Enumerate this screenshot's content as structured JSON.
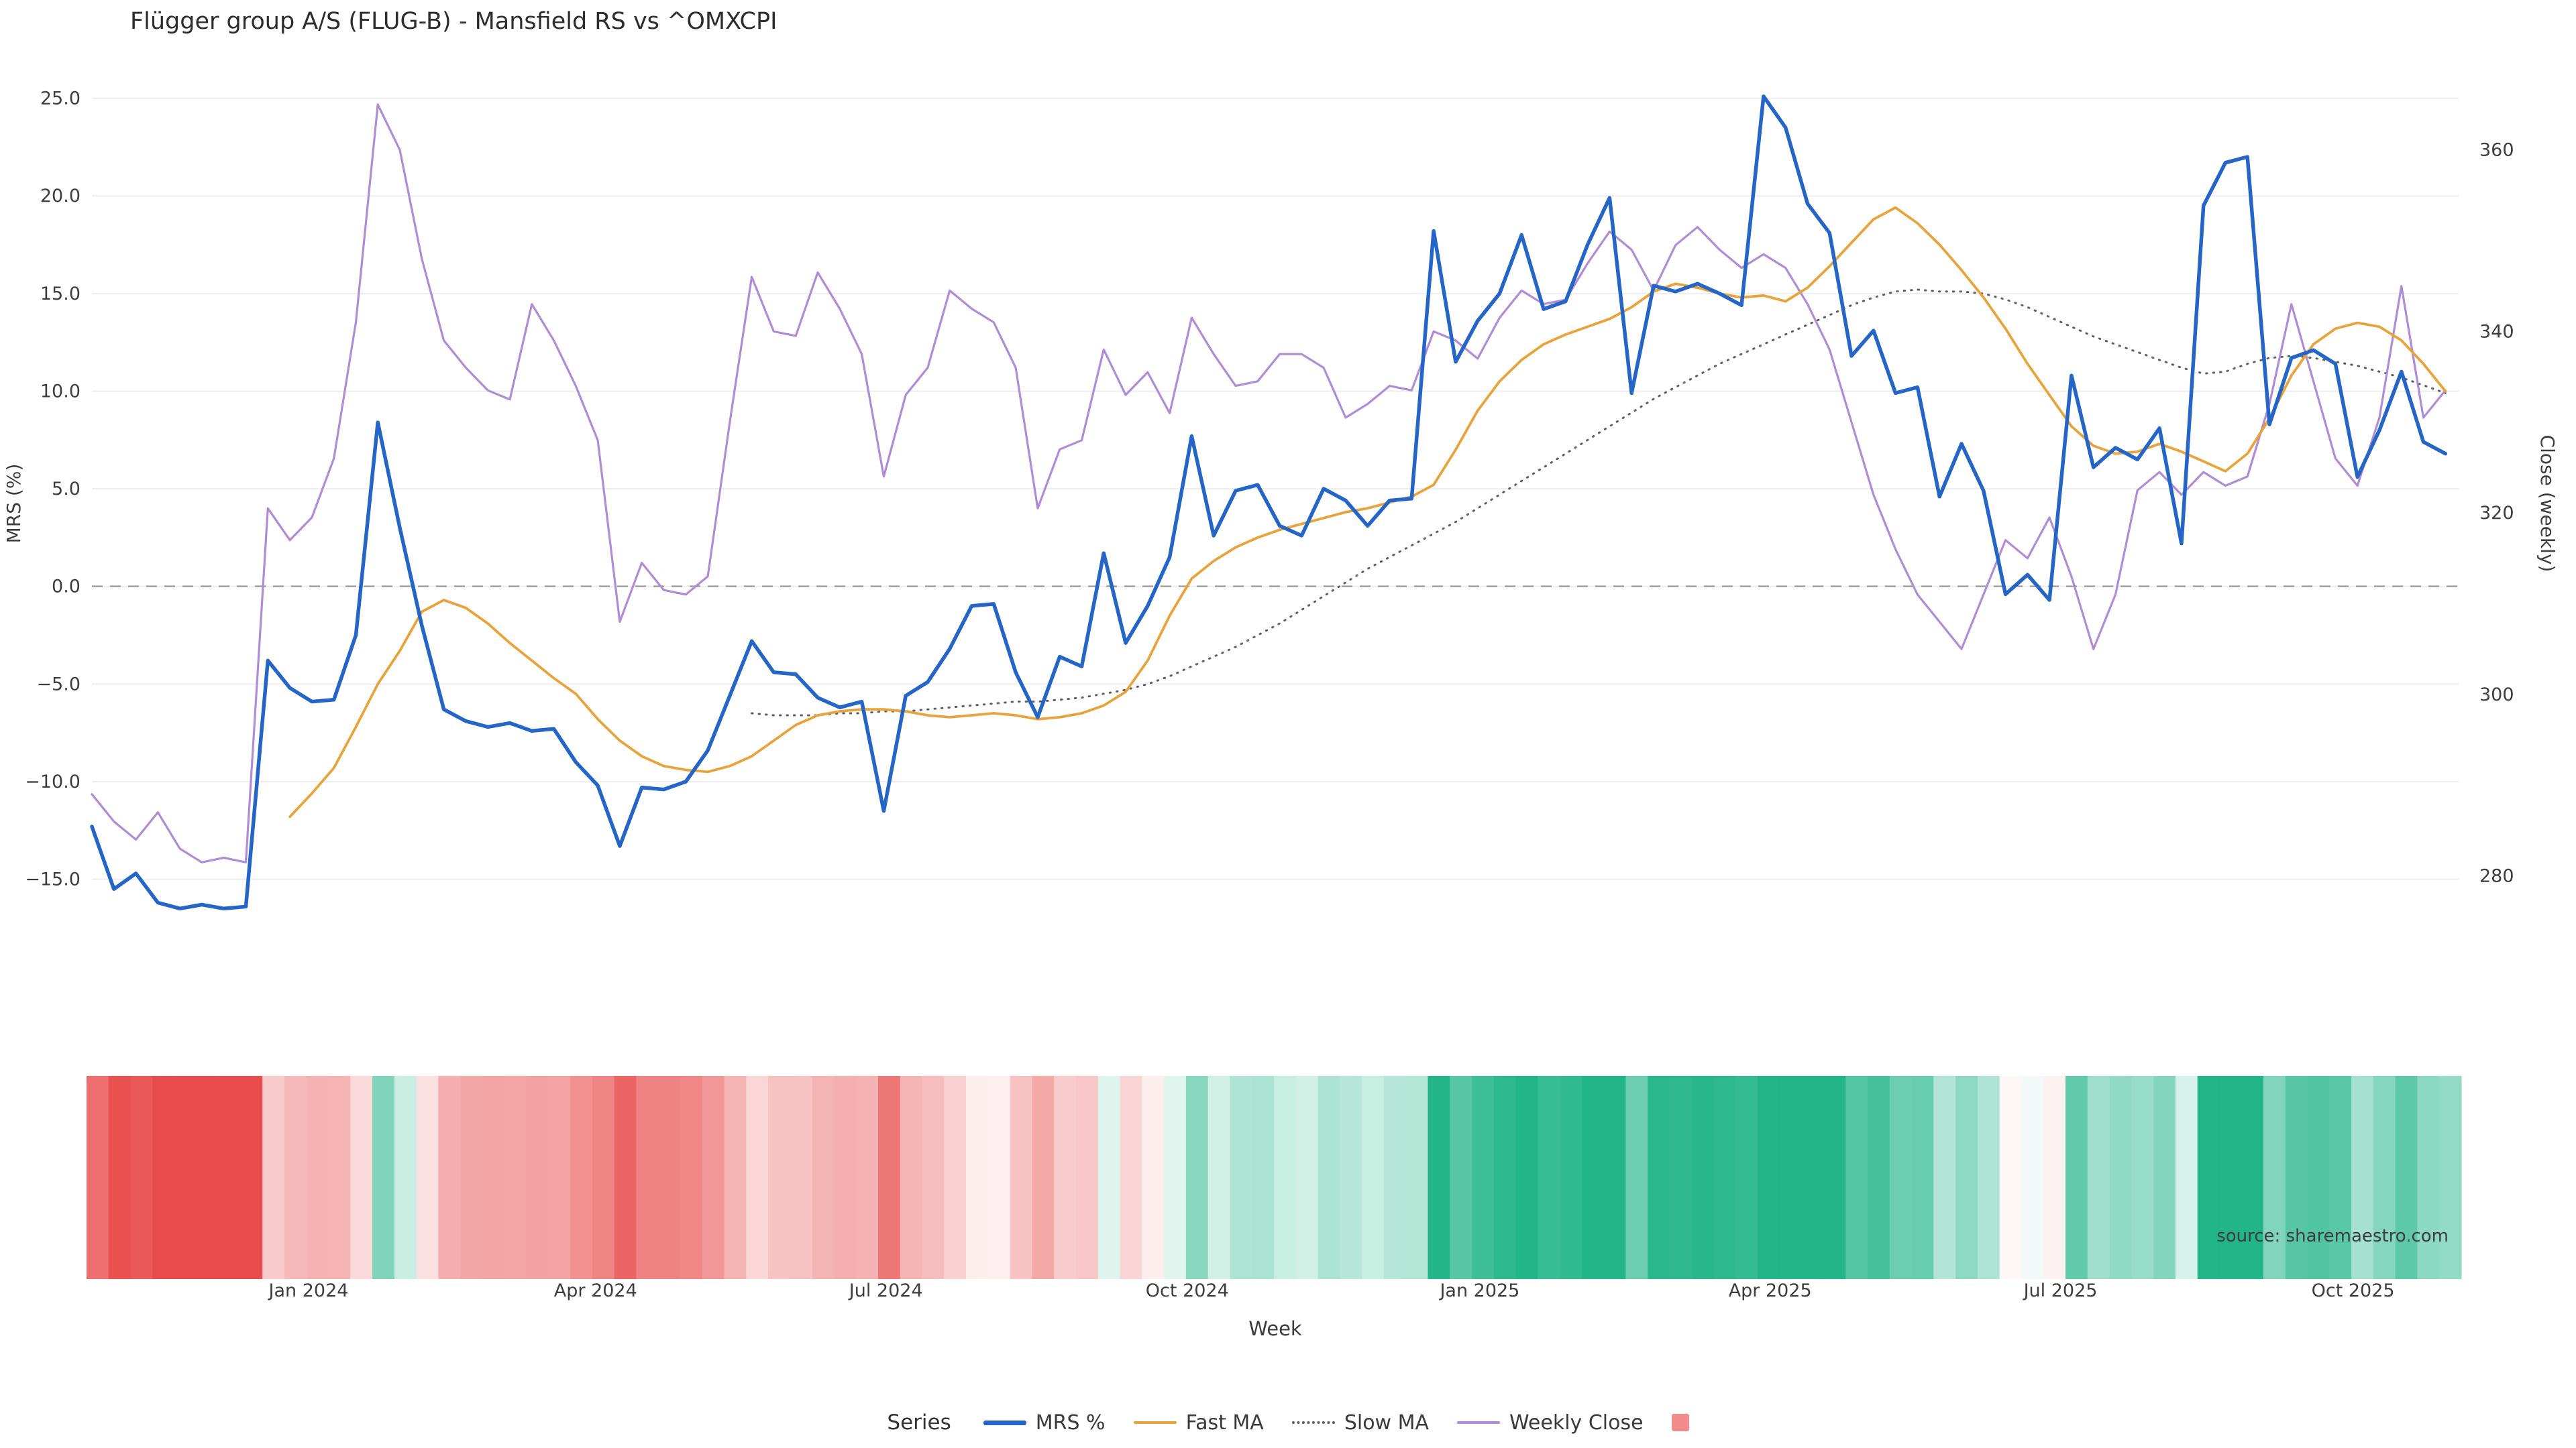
{
  "title": "Flügger group A/S (FLUG-B) - Mansfield RS vs ^OMXCPI",
  "source_note": "source: sharemaestro.com",
  "legend": {
    "label": "Series",
    "items": [
      {
        "id": "mrs-percent",
        "label": "MRS %",
        "swatch": "line-thick",
        "color": "#2565c6"
      },
      {
        "id": "fast-ma",
        "label": "Fast MA",
        "swatch": "line",
        "color": "#e7a33c"
      },
      {
        "id": "slow-ma",
        "label": "Slow MA",
        "swatch": "dotted",
        "color": "#5f5f5f"
      },
      {
        "id": "weekly-close",
        "label": "Weekly Close",
        "swatch": "line",
        "color": "#b18cd6"
      },
      {
        "id": "heatmap",
        "label": "",
        "swatch": "square",
        "color": "#f08c8c"
      }
    ]
  },
  "chart_data": {
    "type": "line",
    "title": "Flügger group A/S (FLUG-B) - Mansfield RS vs ^OMXCPI",
    "xlabel": "Week",
    "ylabel_left": "MRS (%)",
    "ylabel_right": "Close (weekly)",
    "x_unit": "weekly observations, Nov 2023 - Nov 2025",
    "grid": true,
    "zero_line": 0,
    "y_left_range": [
      -15,
      25
    ],
    "y_right_range": [
      280,
      360
    ],
    "y_left_ticks": [
      {
        "v": 25,
        "label": "25.0"
      },
      {
        "v": 20,
        "label": "20.0"
      },
      {
        "v": 15,
        "label": "15.0"
      },
      {
        "v": 10,
        "label": "10.0"
      },
      {
        "v": 5,
        "label": "5.0"
      },
      {
        "v": 0,
        "label": "0.0"
      },
      {
        "v": -5,
        "label": "−5.0"
      },
      {
        "v": -10,
        "label": "−10.0"
      },
      {
        "v": -15,
        "label": "−15.0"
      }
    ],
    "y_right_ticks": [
      {
        "v": 360,
        "label": "360"
      },
      {
        "v": 340,
        "label": "340"
      },
      {
        "v": 320,
        "label": "320"
      },
      {
        "v": 300,
        "label": "300"
      },
      {
        "v": 280,
        "label": "280"
      }
    ],
    "x_ticks": [
      {
        "i": 9.85,
        "label": "Jan 2024"
      },
      {
        "i": 22.9,
        "label": "Apr 2024"
      },
      {
        "i": 36.1,
        "label": "Jul 2024"
      },
      {
        "i": 49.8,
        "label": "Oct 2024"
      },
      {
        "i": 63.1,
        "label": "Jan 2025"
      },
      {
        "i": 76.3,
        "label": "Apr 2025"
      },
      {
        "i": 89.5,
        "label": "Jul 2025"
      },
      {
        "i": 102.8,
        "label": "Oct 2025"
      }
    ],
    "series": [
      {
        "name": "MRS %",
        "axis": "left",
        "color": "#2565c6",
        "width": 5.5,
        "dash": "solid",
        "values": [
          -12.3,
          -15.5,
          -14.7,
          -16.2,
          -16.5,
          -16.3,
          -16.5,
          -16.4,
          -3.8,
          -5.2,
          -5.9,
          -5.8,
          -2.5,
          8.4,
          3.0,
          -2.0,
          -6.3,
          -6.9,
          -7.2,
          -7.0,
          -7.4,
          -7.3,
          -9.0,
          -10.2,
          -13.3,
          -10.3,
          -10.4,
          -10.0,
          -8.4,
          -5.6,
          -2.8,
          -4.4,
          -4.5,
          -5.7,
          -6.2,
          -5.9,
          -11.5,
          -5.6,
          -4.9,
          -3.2,
          -1.0,
          -0.9,
          -4.4,
          -6.7,
          -3.6,
          -4.1,
          1.7,
          -2.9,
          -1.0,
          1.5,
          7.7,
          2.6,
          4.9,
          5.2,
          3.1,
          2.6,
          5.0,
          4.4,
          3.1,
          4.4,
          4.5,
          18.2,
          11.5,
          13.6,
          15.0,
          18.0,
          14.2,
          14.6,
          17.5,
          19.9,
          9.9,
          15.4,
          15.1,
          15.5,
          15.0,
          14.4,
          25.1,
          23.5,
          19.6,
          18.1,
          11.8,
          13.1,
          9.9,
          10.2,
          4.6,
          7.3,
          4.9,
          -0.4,
          0.6,
          -0.7,
          10.8,
          6.1,
          7.1,
          6.5,
          8.1,
          2.2,
          19.5,
          21.7,
          22.0,
          8.3,
          11.7,
          12.1,
          11.4,
          5.6,
          8.0,
          11.0,
          7.4,
          6.8
        ]
      },
      {
        "name": "Fast MA",
        "axis": "left",
        "color": "#e7a33c",
        "width": 3.8,
        "dash": "solid",
        "values": [
          null,
          null,
          null,
          null,
          null,
          null,
          null,
          null,
          null,
          -11.8,
          -10.6,
          -9.3,
          -7.2,
          -5.0,
          -3.3,
          -1.3,
          -0.7,
          -1.1,
          -1.9,
          -2.9,
          -3.8,
          -4.7,
          -5.5,
          -6.8,
          -7.9,
          -8.7,
          -9.2,
          -9.4,
          -9.5,
          -9.2,
          -8.7,
          -7.9,
          -7.1,
          -6.6,
          -6.4,
          -6.3,
          -6.3,
          -6.4,
          -6.6,
          -6.7,
          -6.6,
          -6.5,
          -6.6,
          -6.8,
          -6.7,
          -6.5,
          -6.1,
          -5.4,
          -3.8,
          -1.5,
          0.4,
          1.3,
          2.0,
          2.5,
          2.9,
          3.2,
          3.5,
          3.8,
          4.0,
          4.3,
          4.6,
          5.2,
          7.0,
          9.0,
          10.5,
          11.6,
          12.4,
          12.9,
          13.3,
          13.7,
          14.3,
          15.1,
          15.5,
          15.3,
          15.0,
          14.8,
          14.9,
          14.6,
          15.3,
          16.4,
          17.6,
          18.8,
          19.4,
          18.6,
          17.5,
          16.2,
          14.8,
          13.2,
          11.4,
          9.8,
          8.2,
          7.2,
          6.8,
          6.9,
          7.3,
          6.9,
          6.4,
          5.9,
          6.8,
          8.6,
          10.8,
          12.4,
          13.2,
          13.5,
          13.3,
          12.6,
          11.4,
          10.0
        ]
      },
      {
        "name": "Slow MA",
        "axis": "left",
        "color": "#5f5f5f",
        "width": 3.0,
        "dash": "dot",
        "values": [
          null,
          null,
          null,
          null,
          null,
          null,
          null,
          null,
          null,
          null,
          null,
          null,
          null,
          null,
          null,
          null,
          null,
          null,
          null,
          null,
          null,
          null,
          null,
          null,
          null,
          null,
          null,
          null,
          null,
          null,
          -6.5,
          -6.6,
          -6.6,
          -6.6,
          -6.5,
          -6.5,
          -6.4,
          -6.4,
          -6.3,
          -6.2,
          -6.1,
          -6.0,
          -5.9,
          -5.9,
          -5.8,
          -5.7,
          -5.5,
          -5.3,
          -5.0,
          -4.6,
          -4.1,
          -3.6,
          -3.1,
          -2.5,
          -1.9,
          -1.2,
          -0.5,
          0.2,
          0.9,
          1.5,
          2.1,
          2.7,
          3.3,
          4.0,
          4.7,
          5.4,
          6.1,
          6.8,
          7.5,
          8.2,
          8.9,
          9.6,
          10.2,
          10.8,
          11.4,
          11.9,
          12.4,
          12.9,
          13.4,
          13.9,
          14.4,
          14.8,
          15.1,
          15.2,
          15.1,
          15.1,
          15.0,
          14.7,
          14.3,
          13.8,
          13.3,
          12.8,
          12.4,
          12.0,
          11.6,
          11.2,
          10.9,
          11.0,
          11.4,
          11.7,
          11.8,
          11.7,
          11.5,
          11.3,
          11.0,
          10.7,
          10.3,
          9.9
        ]
      },
      {
        "name": "Weekly Close",
        "axis": "right",
        "color": "#b18cd6",
        "width": 3.2,
        "dash": "solid",
        "values": [
          289,
          286,
          284,
          287,
          283,
          281.5,
          282,
          281.5,
          320.5,
          317,
          319.5,
          326,
          341,
          365,
          360,
          348,
          339,
          336,
          333.5,
          332.5,
          343,
          339,
          334,
          328,
          308,
          314.5,
          311.5,
          311,
          313,
          330,
          346,
          340,
          339.5,
          346.5,
          342.5,
          337.5,
          324,
          333,
          336,
          344.5,
          342.5,
          341,
          336,
          320.5,
          327,
          328,
          338,
          333,
          335.5,
          331,
          341.5,
          337.5,
          334,
          334.5,
          337.5,
          337.5,
          336,
          330.5,
          332,
          334,
          333.5,
          340,
          339,
          337,
          341.5,
          344.5,
          343,
          343.5,
          347.5,
          351,
          349,
          344.5,
          349.5,
          351.5,
          349,
          347,
          348.5,
          347,
          343,
          338,
          330,
          322,
          316,
          311,
          308,
          305,
          311,
          317,
          315,
          319.5,
          313,
          305,
          311,
          322.5,
          324.5,
          322,
          324.5,
          323,
          324,
          332,
          343,
          334.5,
          326,
          323,
          330.5,
          345,
          330.5,
          333.5
        ]
      }
    ],
    "heatmap": {
      "derived_from": "MRS %",
      "neg_color": "#e84b4b",
      "pos_color": "#22b587",
      "note": "weekly strip colored red for negative MRS, green for positive, intensity by magnitude"
    }
  }
}
